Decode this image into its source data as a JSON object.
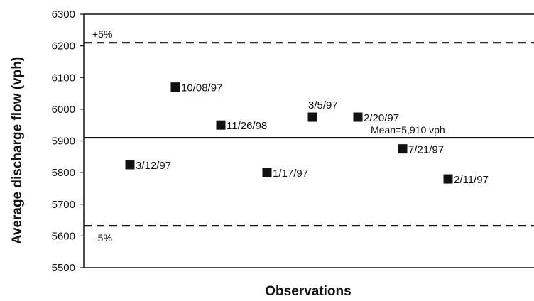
{
  "chart_data": {
    "type": "scatter",
    "xlabel": "Observations",
    "ylabel": "Average discharge flow (vph)",
    "ylim": [
      5500,
      6300
    ],
    "yticks": [
      5500,
      5600,
      5700,
      5800,
      5900,
      6000,
      6100,
      6200,
      6300
    ],
    "ytick_labels": [
      "5500",
      "5600",
      "5700",
      "5800",
      "5900",
      "6000",
      "6100",
      "6200",
      "6300"
    ],
    "xlim": [
      0,
      10
    ],
    "grid": false,
    "marker_color": "#111111",
    "points": [
      {
        "x": 1,
        "y": 5825,
        "label": "3/12/97"
      },
      {
        "x": 2,
        "y": 6070,
        "label": "10/08/97"
      },
      {
        "x": 3,
        "y": 5950,
        "label": "11/26/98"
      },
      {
        "x": 4,
        "y": 5800,
        "label": "1/17/97"
      },
      {
        "x": 5,
        "y": 5975,
        "label": "3/5/97"
      },
      {
        "x": 6,
        "y": 5975,
        "label": "2/20/97"
      },
      {
        "x": 7,
        "y": 5875,
        "label": "7/21/97"
      },
      {
        "x": 8,
        "y": 5780,
        "label": "2/11/97"
      }
    ],
    "reference_lines": [
      {
        "y": 6210,
        "style": "dashed",
        "label": "+5%"
      },
      {
        "y": 5910,
        "style": "solid",
        "label": "Mean=5,910 vph"
      },
      {
        "y": 5632,
        "style": "dashed",
        "label": "-5%"
      }
    ]
  }
}
